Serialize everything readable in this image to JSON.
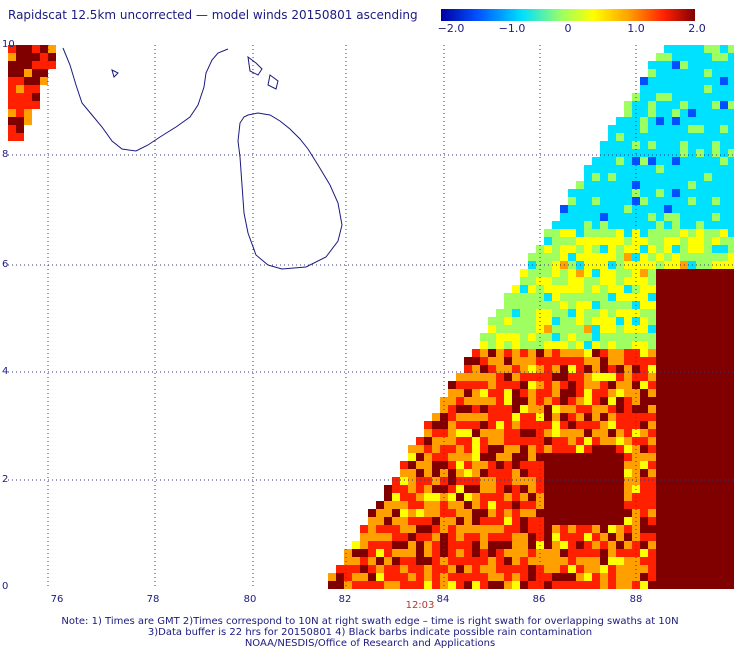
{
  "title": "Rapidscat 12.5km uncorrected — model winds 20150801 ascending",
  "colorbar": {
    "ticks": [
      "−2.0",
      "−1.0",
      "0",
      "1.0",
      "2.0"
    ],
    "colors": [
      "#0000a0",
      "#0050ff",
      "#00e0ff",
      "#a0ff60",
      "#ffff00",
      "#ffa000",
      "#ff2000",
      "#800000"
    ]
  },
  "axes": {
    "ylabels": [
      "10",
      "8",
      "6",
      "4",
      "2",
      "0"
    ],
    "xlabels": [
      "76",
      "78",
      "80",
      "82",
      "84",
      "86",
      "88"
    ]
  },
  "time_label": "12:03",
  "notes": [
    "Note: 1) Times are GMT 2)Times correspond to 10N at right swath edge – time is right swath for overlapping swaths at 10N",
    "3)Data buffer is 22 hrs for 20150801 4) Black barbs indicate possible rain contamination",
    "NOAA/NESDIS/Office of Research and Applications"
  ]
}
